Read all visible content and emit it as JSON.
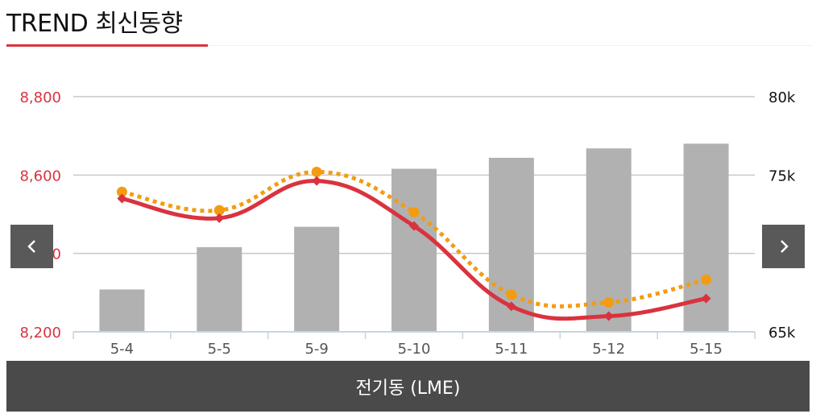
{
  "header": {
    "title": "TREND 최신동향"
  },
  "footer": {
    "label": "전기동 (LME)"
  },
  "nav": {
    "prev_icon": "chevron-left-icon",
    "next_icon": "chevron-right-icon"
  },
  "colors": {
    "bar": "#b1b1b1",
    "red_line": "#d9333f",
    "orange_line": "#f39c12",
    "left_axis": "#d9333f",
    "accent": "#d9333f"
  },
  "chart_data": {
    "type": "bar+line",
    "categories": [
      "5-4",
      "5-5",
      "5-9",
      "5-10",
      "5-11",
      "5-12",
      "5-15"
    ],
    "left_axis": {
      "min": 8200,
      "max": 8800,
      "ticks": [
        "8,200",
        "8,400",
        "8,600",
        "8,800"
      ],
      "tick_values": [
        8200,
        8400,
        8600,
        8800
      ]
    },
    "right_axis": {
      "min": 65,
      "max": 80,
      "ticks": [
        "65k",
        "70k",
        "75k",
        "80k"
      ],
      "tick_values": [
        65,
        70,
        75,
        80
      ]
    },
    "bars": {
      "axis": "right",
      "values": [
        67.7,
        70.4,
        71.7,
        75.4,
        76.1,
        76.7,
        77.0
      ]
    },
    "lines": [
      {
        "axis": "left",
        "style": "solid",
        "marker": "diamond",
        "color": "#d9333f",
        "values": [
          8540,
          8490,
          8585,
          8470,
          8265,
          8240,
          8285
        ]
      },
      {
        "axis": "left",
        "style": "dotted",
        "marker": "circle",
        "color": "#f39c12",
        "values": [
          8557,
          8510,
          8608,
          8505,
          8295,
          8275,
          8333
        ]
      }
    ],
    "grid": true
  }
}
